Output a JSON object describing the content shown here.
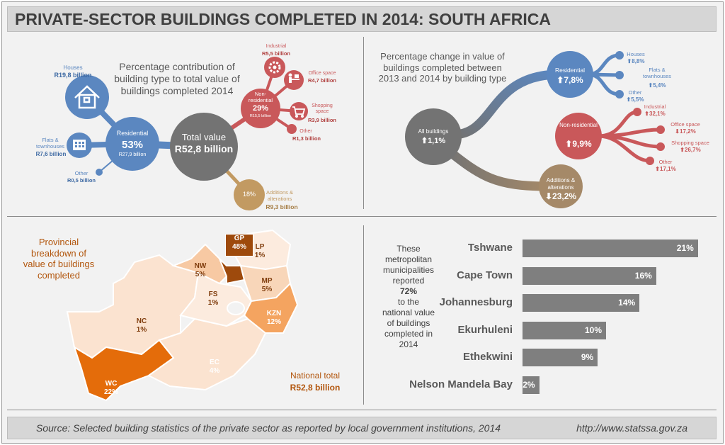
{
  "title": "PRIVATE-SECTOR BUILDINGS COMPLETED IN 2014: SOUTH AFRICA",
  "contribution": {
    "heading": "Percentage contribution of building type to total value of buildings completed 2014",
    "total": {
      "label": "Total value",
      "value": "R52,8 billion"
    },
    "residential": {
      "label": "Residential",
      "pct": "53%",
      "value": "R27,9 billion",
      "houses": {
        "label": "Houses",
        "value": "R19,8 billion",
        "icon": "house-icon"
      },
      "flats": {
        "label": "Flats & townhouses",
        "value": "R7,6 billion",
        "icon": "apartment-icon"
      },
      "other": {
        "label": "Other",
        "value": "R0,5 billion"
      }
    },
    "non_residential": {
      "label": "Non-residential",
      "pct": "29%",
      "value": "R15,5 billion",
      "industrial": {
        "label": "Industrial",
        "value": "R5,5 billion",
        "icon": "gear-icon"
      },
      "office": {
        "label": "Office space",
        "value": "R4,7 billion",
        "icon": "desk-icon"
      },
      "shopping": {
        "label": "Shopping space",
        "value": "R3,9 billion",
        "icon": "cart-icon"
      },
      "other": {
        "label": "Other",
        "value": "R1,3 billion"
      }
    },
    "additions": {
      "label": "Additions & alterations",
      "pct": "18%",
      "value": "R9,3 billion"
    },
    "colors": {
      "residential": "#5b87c0",
      "non_residential": "#c9585a",
      "additions": "#c29a62",
      "total": "#737373"
    }
  },
  "change": {
    "heading": "Percentage change in value of buildings completed between 2013 and 2014 by building type",
    "all": {
      "label": "All buildings",
      "value": "1,1%",
      "dir": "up"
    },
    "residential": {
      "label": "Residential",
      "value": "7,8%",
      "dir": "up"
    },
    "res_items": [
      {
        "label": "Houses",
        "value": "8,8%",
        "dir": "up"
      },
      {
        "label": "Flats & townhouses",
        "value": "5,4%",
        "dir": "up"
      },
      {
        "label": "Other",
        "value": "5,5%",
        "dir": "up"
      }
    ],
    "non_residential": {
      "label": "Non-residential",
      "value": "9,9%",
      "dir": "up"
    },
    "nonres_items": [
      {
        "label": "Industrial",
        "value": "32,1%",
        "dir": "up"
      },
      {
        "label": "Office space",
        "value": "17,2%",
        "dir": "down"
      },
      {
        "label": "Shopping space",
        "value": "26,7%",
        "dir": "up"
      },
      {
        "label": "Other",
        "value": "17,1%",
        "dir": "up"
      }
    ],
    "additions": {
      "label": "Additions & alterations",
      "value": "23,2%",
      "dir": "down"
    }
  },
  "map": {
    "heading": "Provincial breakdown of value of buildings completed",
    "provinces": [
      {
        "code": "GP",
        "pct": "48%"
      },
      {
        "code": "LP",
        "pct": "1%"
      },
      {
        "code": "NW",
        "pct": "5%"
      },
      {
        "code": "MP",
        "pct": "5%"
      },
      {
        "code": "FS",
        "pct": "1%"
      },
      {
        "code": "KZN",
        "pct": "12%"
      },
      {
        "code": "NC",
        "pct": "1%"
      },
      {
        "code": "EC",
        "pct": "4%"
      },
      {
        "code": "WC",
        "pct": "22%"
      }
    ],
    "national_label": "National total",
    "national_value": "R52,8 billion"
  },
  "metro": {
    "note": [
      "These",
      "metropolitan",
      "municipalities",
      "reported"
    ],
    "note_pct": "72%",
    "note_end": [
      "to the",
      "national value",
      "of buildings",
      "completed in",
      "2014"
    ]
  },
  "chart_data": {
    "type": "bar",
    "orientation": "horizontal",
    "categories": [
      "Tshwane",
      "Cape Town",
      "Johannesburg",
      "Ekurhuleni",
      "Ethekwini",
      "Nelson Mandela Bay"
    ],
    "values": [
      21,
      16,
      14,
      10,
      9,
      2
    ],
    "labels": [
      "21%",
      "16%",
      "14%",
      "10%",
      "9%",
      "2%"
    ],
    "color": "#7f7f7f"
  },
  "footer": {
    "source": "Source: Selected building statistics of the private sector as reported by local government institutions, 2014",
    "url": "http://www.statssa.gov.za"
  }
}
